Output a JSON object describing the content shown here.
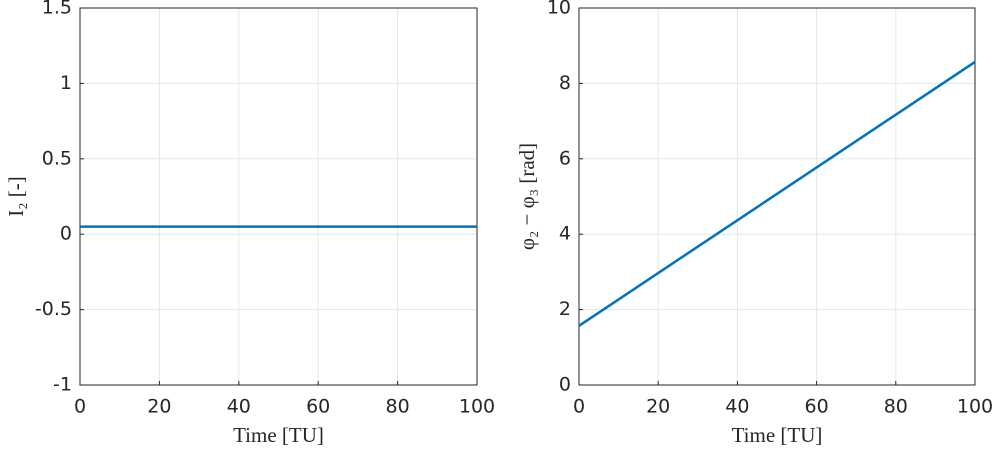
{
  "chart_data": [
    {
      "type": "line",
      "x": [
        0,
        100
      ],
      "xlabel": "Time [TU]",
      "ylabel": "I₂ [-]",
      "series": [
        {
          "color": "#0072bd",
          "values": [
            0.05,
            0.05
          ]
        }
      ],
      "xlim": [
        0,
        100
      ],
      "xticks": [
        0,
        20,
        40,
        60,
        80,
        100
      ],
      "ylim": [
        -1,
        1.5
      ],
      "yticks": [
        -1,
        -0.5,
        0,
        0.5,
        1,
        1.5
      ],
      "grid": true
    },
    {
      "type": "line",
      "x": [
        0,
        100
      ],
      "xlabel": "Time [TU]",
      "ylabel": "φ₂ − φ₃ [rad]",
      "series": [
        {
          "color": "#0072bd",
          "values": [
            1.57,
            8.57
          ]
        }
      ],
      "xlim": [
        0,
        100
      ],
      "xticks": [
        0,
        20,
        40,
        60,
        80,
        100
      ],
      "ylim": [
        0,
        10
      ],
      "yticks": [
        0,
        2,
        4,
        6,
        8,
        10
      ],
      "grid": true
    }
  ]
}
